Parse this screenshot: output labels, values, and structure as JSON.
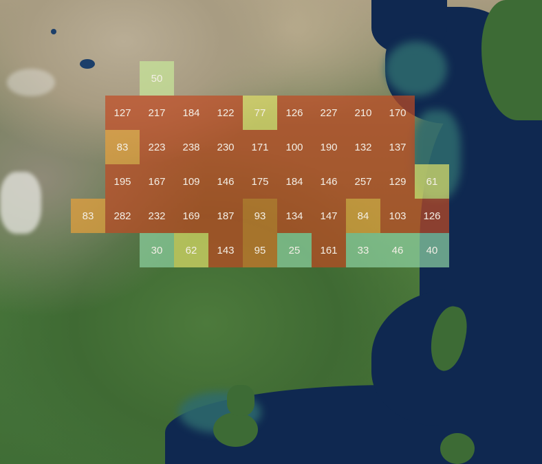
{
  "map": {
    "cell_opacity": 0.7,
    "colors": {
      "green": "#8fd3a2",
      "light_green": "#c7e89a",
      "yellow": "#dfe06a",
      "orange": "#e8a13a",
      "dark_orange": "#d2782a",
      "red": "#c04a22"
    },
    "rows": [
      {
        "start_col": 2,
        "values": [
          50
        ]
      },
      {
        "start_col": 1,
        "values": [
          127,
          217,
          184,
          122,
          77,
          126,
          227,
          210,
          170
        ]
      },
      {
        "start_col": 1,
        "values": [
          83,
          223,
          238,
          230,
          171,
          100,
          190,
          132,
          137
        ]
      },
      {
        "start_col": 1,
        "values": [
          195,
          167,
          109,
          146,
          175,
          184,
          146,
          257,
          129,
          61
        ]
      },
      {
        "start_col": 0,
        "values": [
          83,
          282,
          232,
          169,
          187,
          93,
          134,
          147,
          84,
          103,
          126
        ]
      },
      {
        "start_col": 2,
        "values": [
          30,
          62,
          143,
          95,
          25,
          161,
          33,
          46,
          40
        ]
      }
    ]
  }
}
